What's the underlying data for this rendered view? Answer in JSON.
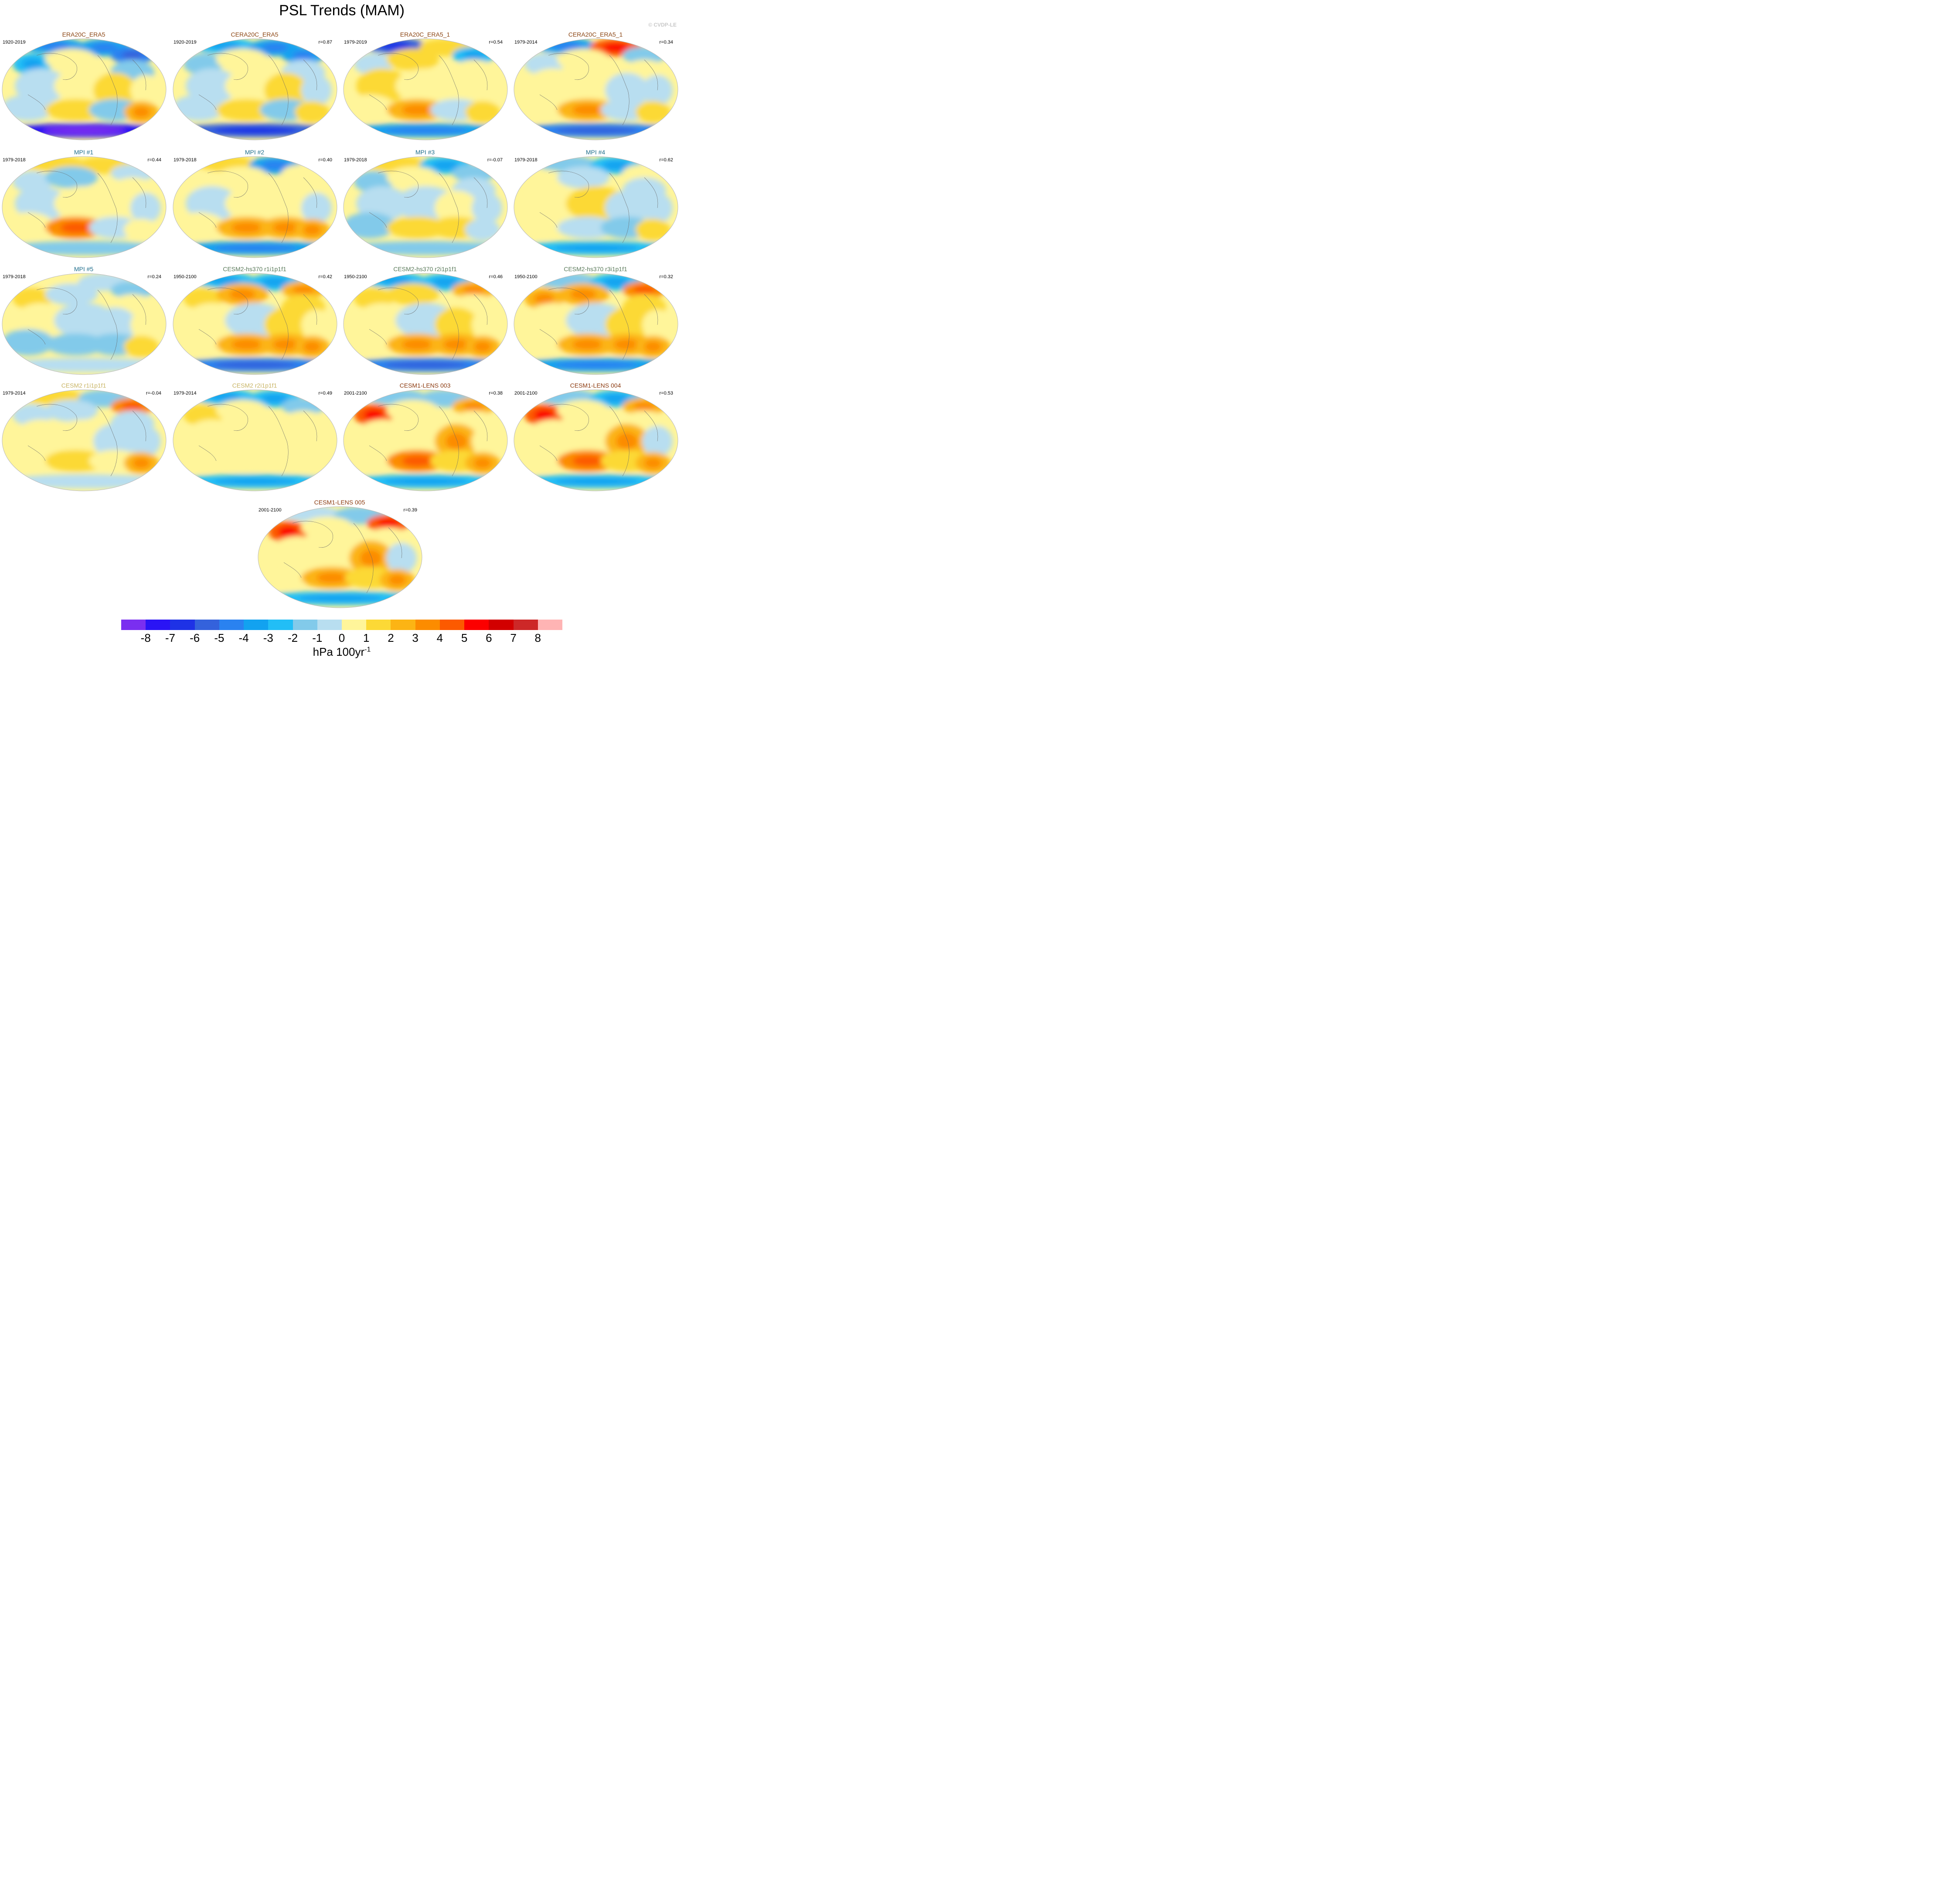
{
  "title": "PSL Trends (MAM)",
  "copyright": "© CVDP-LE",
  "colorbar": {
    "ticks": [
      "-8",
      "-7",
      "-6",
      "-5",
      "-4",
      "-3",
      "-2",
      "-1",
      "0",
      "1",
      "2",
      "3",
      "4",
      "5",
      "6",
      "7",
      "8"
    ],
    "colors": [
      "#7a2ff0",
      "#2a14f5",
      "#1e32e6",
      "#3462dc",
      "#2a82f0",
      "#12a2f0",
      "#22bef6",
      "#82caea",
      "#b8def0",
      "#fff59a",
      "#fcd936",
      "#fcb414",
      "#fc8c00",
      "#fc5a00",
      "#fc0000",
      "#d20000",
      "#cd2828",
      "#ffb4b4"
    ],
    "units_base": "hPa 100yr",
    "units_exp": "-1"
  },
  "panels": [
    {
      "title": "ERA20C_ERA5",
      "years": "1920-2019",
      "corr": "",
      "title_color": "#8b4513",
      "pattern": [
        -4,
        -4,
        -5,
        -3,
        1,
        -2,
        -1,
        1,
        2,
        1,
        -1,
        2,
        -2,
        3,
        -8
      ]
    },
    {
      "title": "CERA20C_ERA5",
      "years": "1920-2019",
      "corr": "r=0.87",
      "title_color": "#8b4513",
      "pattern": [
        -3,
        -4,
        -4,
        -2,
        1,
        -1,
        -1,
        1,
        2,
        -1,
        -1,
        2,
        -2,
        2,
        -6
      ]
    },
    {
      "title": "ERA20C_ERA5_1",
      "years": "1979-2019",
      "corr": "r=0.54",
      "title_color": "#8b4513",
      "pattern": [
        -6,
        2,
        -3,
        -1,
        2,
        1,
        2,
        1,
        1,
        1,
        1,
        3,
        -1,
        2,
        -4
      ]
    },
    {
      "title": "CERA20C_ERA5_1",
      "years": "1979-2014",
      "corr": "r=0.34",
      "title_color": "#8b4513",
      "pattern": [
        -4,
        5,
        -2,
        -1,
        1,
        1,
        1,
        1,
        -1,
        -1,
        1,
        3,
        -1,
        2,
        -5
      ]
    },
    {
      "title": "MPI #1",
      "years": "1979-2018",
      "corr": "r=0.44",
      "title_color": "#1f6e8c",
      "pattern": [
        2,
        2,
        -1,
        -1,
        -2,
        1,
        -1,
        1,
        1,
        -1,
        1,
        4,
        -1,
        1,
        -2
      ]
    },
    {
      "title": "MPI #2",
      "years": "1979-2018",
      "corr": "r=0.40",
      "title_color": "#1f6e8c",
      "pattern": [
        2,
        -4,
        1,
        1,
        1,
        1,
        -1,
        1,
        1,
        -1,
        1,
        3,
        3,
        3,
        -4
      ]
    },
    {
      "title": "MPI #3",
      "years": "1979-2018",
      "corr": "r=-0.07",
      "title_color": "#1f6e8c",
      "pattern": [
        2,
        -3,
        -2,
        -2,
        1,
        -1,
        -1,
        -1,
        1,
        -1,
        -2,
        2,
        2,
        -1,
        -2
      ]
    },
    {
      "title": "MPI #4",
      "years": "1979-2018",
      "corr": "r=0.62",
      "title_color": "#1f6e8c",
      "pattern": [
        -2,
        -3,
        1,
        1,
        -1,
        -1,
        1,
        2,
        -1,
        -1,
        1,
        -1,
        -2,
        2,
        -3
      ]
    },
    {
      "title": "MPI #5",
      "years": "1979-2018",
      "corr": "r=0.24",
      "title_color": "#1f6e8c",
      "pattern": [
        1,
        -1,
        -2,
        2,
        -1,
        1,
        1,
        -1,
        -1,
        1,
        -2,
        -2,
        -2,
        2,
        -1
      ]
    },
    {
      "title": "CESM2-hs370 r1i1p1f1",
      "years": "1950-2100",
      "corr": "r=0.42",
      "title_color": "#5a7a5a",
      "pattern": [
        -3,
        -3,
        3,
        2,
        3,
        2,
        1,
        -1,
        2,
        1,
        1,
        3,
        3,
        3,
        -5
      ]
    },
    {
      "title": "CESM2-hs370 r2i1p1f1",
      "years": "1950-2100",
      "corr": "r=0.46",
      "title_color": "#5a7a5a",
      "pattern": [
        -3,
        -3,
        3,
        2,
        2,
        1,
        1,
        -1,
        2,
        1,
        1,
        3,
        3,
        3,
        -5
      ]
    },
    {
      "title": "CESM2-hs370 r3i1p1f1",
      "years": "1950-2100",
      "corr": "r=0.32",
      "title_color": "#5a7a5a",
      "pattern": [
        -2,
        -3,
        4,
        3,
        3,
        2,
        1,
        -1,
        2,
        1,
        1,
        3,
        3,
        3,
        -4
      ]
    },
    {
      "title": "CESM2 r1i1p1f1",
      "years": "1979-2014",
      "corr": "r=-0.04",
      "title_color": "#c8b464",
      "pattern": [
        2,
        -2,
        4,
        -1,
        -1,
        -1,
        1,
        1,
        -1,
        -1,
        1,
        2,
        1,
        3,
        -1
      ]
    },
    {
      "title": "CESM2 r2i1p1f1",
      "years": "1979-2014",
      "corr": "r=0.49",
      "title_color": "#c8b464",
      "pattern": [
        -3,
        -3,
        -2,
        2,
        1,
        1,
        1,
        1,
        1,
        1,
        1,
        1,
        1,
        1,
        -3
      ]
    },
    {
      "title": "CESM1-LENS 003",
      "years": "2001-2100",
      "corr": "r=0.38",
      "title_color": "#8b3a0f",
      "pattern": [
        -2,
        -2,
        3,
        5,
        1,
        1,
        1,
        1,
        3,
        1,
        1,
        4,
        2,
        3,
        -3
      ]
    },
    {
      "title": "CESM1-LENS 004",
      "years": "2001-2100",
      "corr": "r=0.53",
      "title_color": "#8b3a0f",
      "pattern": [
        -2,
        -3,
        3,
        5,
        1,
        1,
        1,
        1,
        3,
        -1,
        1,
        4,
        2,
        3,
        -3
      ]
    },
    {
      "title": "CESM1-LENS 005",
      "years": "2001-2100",
      "corr": "r=0.39",
      "title_color": "#8b3a0f",
      "pattern": [
        -1,
        -2,
        5,
        5,
        1,
        1,
        1,
        1,
        3,
        -1,
        1,
        3,
        2,
        3,
        -3
      ]
    }
  ]
}
